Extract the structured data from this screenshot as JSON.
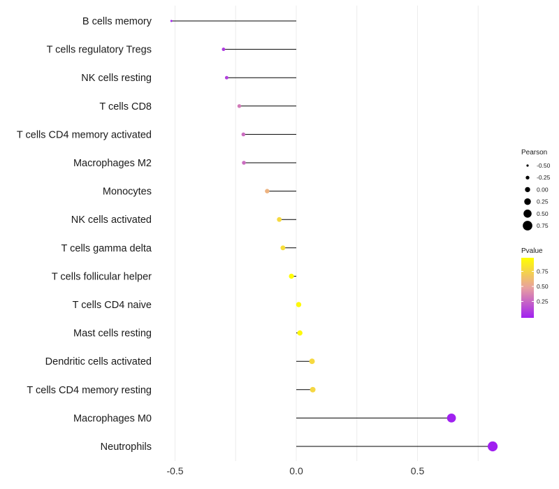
{
  "chart_data": {
    "type": "lollipop",
    "x_axis": {
      "ticks": [
        -0.5,
        0.0,
        0.5
      ],
      "tick_labels": [
        "-0.5",
        "0.0",
        "0.5"
      ],
      "xlim": [
        -0.65,
        0.83
      ]
    },
    "grid": "vertical",
    "categories": [
      "B cells memory",
      "T cells regulatory  Tregs",
      "NK cells resting",
      "T cells CD8",
      "T cells CD4 memory activated",
      "Macrophages M2",
      "Monocytes",
      "NK cells activated",
      "T cells gamma delta",
      "T cells follicular helper",
      "T cells CD4 naive",
      "Mast cells resting",
      "Dendritic cells activated",
      "T cells CD4 memory resting",
      "Macrophages M0",
      "Neutrophils"
    ],
    "pearson": [
      -0.515,
      -0.3,
      -0.287,
      -0.235,
      -0.218,
      -0.216,
      -0.12,
      -0.07,
      -0.055,
      -0.02,
      0.01,
      0.015,
      0.065,
      0.068,
      0.64,
      0.81
    ],
    "pvalue": [
      0.02,
      0.1,
      0.12,
      0.35,
      0.3,
      0.3,
      0.6,
      0.8,
      0.82,
      0.99,
      0.97,
      0.97,
      0.8,
      0.79,
      0.003,
      0.001
    ],
    "legend_size": {
      "title": "Pearson",
      "values": [
        -0.5,
        -0.25,
        0.0,
        0.25,
        0.5,
        0.75
      ],
      "labels": [
        "-0.50",
        "-0.25",
        "0.00",
        "0.25",
        "0.50",
        "0.75"
      ]
    },
    "legend_color": {
      "title": "Pvalue",
      "ticks": [
        0.75,
        0.5,
        0.25
      ],
      "labels": [
        "0.75",
        "0.50",
        "0.25"
      ],
      "range": [
        0.0,
        1.0
      ],
      "low_color": "#a020f0",
      "mid_color": "#e8a0a0",
      "high_color": "#ffff00"
    },
    "segment_color": "#000000",
    "grid_color": "#ececec"
  }
}
